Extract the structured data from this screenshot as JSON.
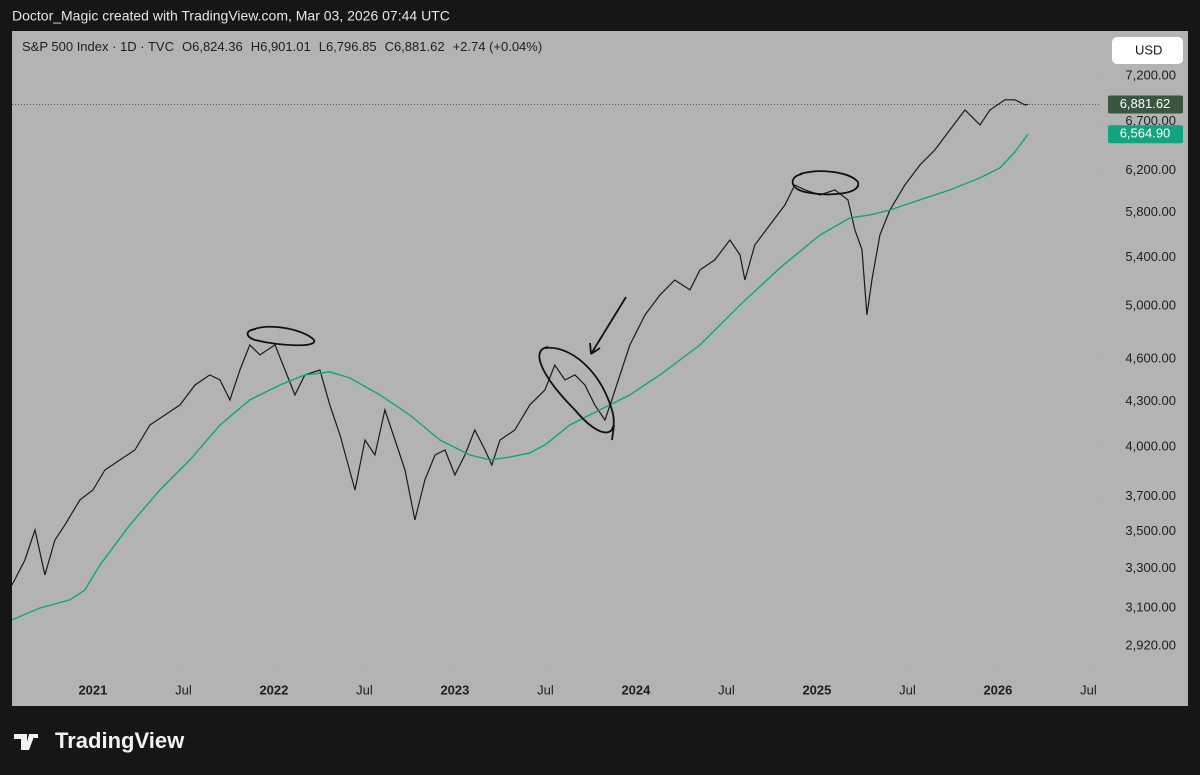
{
  "header": {
    "text": "Doctor_Magic created with TradingView.com, Mar 03, 2026 07:44 UTC"
  },
  "toolbar": {
    "currency": "USD"
  },
  "footer": {
    "logo": "TradingView"
  },
  "chart_data": {
    "type": "line",
    "legend": {
      "symbol": "S&P 500 Index · 1D · TVC",
      "ohlc": [
        {
          "key": "O",
          "value": 6824.36,
          "label": "6,824.36"
        },
        {
          "key": "H",
          "value": 6901.01,
          "label": "6,901.01"
        },
        {
          "key": "L",
          "value": 6796.85,
          "label": "6,796.85"
        },
        {
          "key": "C",
          "value": 6881.62,
          "label": "6,881.62"
        }
      ],
      "change": "+2.74 (+0.04%)"
    },
    "log_scale": true,
    "xlim": [
      2020.553,
      2026.564
    ],
    "xticks": [
      {
        "value": 2021,
        "label": "2021"
      },
      {
        "value": 2021.5,
        "label": "Jul"
      },
      {
        "value": 2022,
        "label": "2022"
      },
      {
        "value": 2022.5,
        "label": "Jul"
      },
      {
        "value": 2023,
        "label": "2023"
      },
      {
        "value": 2023.5,
        "label": "Jul"
      },
      {
        "value": 2024,
        "label": "2024"
      },
      {
        "value": 2024.5,
        "label": "Jul"
      },
      {
        "value": 2025,
        "label": "2025"
      },
      {
        "value": 2025.5,
        "label": "Jul"
      },
      {
        "value": 2026,
        "label": "2026"
      },
      {
        "value": 2026.5,
        "label": "Jul"
      }
    ],
    "ylim": [
      2820,
      7730
    ],
    "yticks": [
      {
        "value": 2920,
        "label": "2,920.00"
      },
      {
        "value": 3100,
        "label": "3,100.00"
      },
      {
        "value": 3300,
        "label": "3,300.00"
      },
      {
        "value": 3500,
        "label": "3,500.00"
      },
      {
        "value": 3700,
        "label": "3,700.00"
      },
      {
        "value": 4000,
        "label": "4,000.00"
      },
      {
        "value": 4300,
        "label": "4,300.00"
      },
      {
        "value": 4600,
        "label": "4,600.00"
      },
      {
        "value": 5000,
        "label": "5,000.00"
      },
      {
        "value": 5400,
        "label": "5,400.00"
      },
      {
        "value": 5800,
        "label": "5,800.00"
      },
      {
        "value": 6200,
        "label": "6,200.00"
      },
      {
        "value": 6700,
        "label": "6,700.00"
      },
      {
        "value": 7200,
        "label": "7,200.00"
      }
    ],
    "series": [
      {
        "color": "#1a1a1a",
        "tag_color": "#3b5640",
        "last_label": "6,881.62",
        "x": [
          2020.553,
          2020.624,
          2020.68,
          2020.735,
          2020.79,
          2020.845,
          2020.928,
          2021.0,
          2021.066,
          2021.149,
          2021.232,
          2021.315,
          2021.398,
          2021.481,
          2021.564,
          2021.646,
          2021.702,
          2021.757,
          2021.812,
          2021.867,
          2021.923,
          2022.006,
          2022.061,
          2022.116,
          2022.171,
          2022.254,
          2022.309,
          2022.365,
          2022.448,
          2022.503,
          2022.558,
          2022.613,
          2022.669,
          2022.724,
          2022.779,
          2022.834,
          2022.89,
          2022.945,
          2023.0,
          2023.055,
          2023.11,
          2023.166,
          2023.204,
          2023.249,
          2023.331,
          2023.414,
          2023.497,
          2023.552,
          2023.608,
          2023.663,
          2023.718,
          2023.773,
          2023.829,
          2023.867,
          2023.912,
          2023.967,
          2024.05,
          2024.133,
          2024.215,
          2024.298,
          2024.354,
          2024.436,
          2024.519,
          2024.575,
          2024.602,
          2024.657,
          2024.74,
          2024.823,
          2024.878,
          2024.934,
          2025.017,
          2025.099,
          2025.171,
          2025.21,
          2025.249,
          2025.276,
          2025.304,
          2025.348,
          2025.403,
          2025.486,
          2025.569,
          2025.652,
          2025.735,
          2025.818,
          2025.901,
          2025.956,
          2026.039,
          2026.094,
          2026.149,
          2026.166
        ],
        "values": [
          3216,
          3346,
          3509,
          3268,
          3453,
          3537,
          3680,
          3738,
          3858,
          3920,
          3982,
          4143,
          4209,
          4277,
          4414,
          4485,
          4449,
          4311,
          4520,
          4703,
          4629,
          4703,
          4520,
          4345,
          4485,
          4520,
          4277,
          4078,
          3738,
          4046,
          3951,
          4243,
          4046,
          3858,
          3565,
          3798,
          3951,
          3982,
          3828,
          3951,
          4110,
          3982,
          3889,
          4046,
          4110,
          4277,
          4379,
          4556,
          4449,
          4485,
          4414,
          4277,
          4176,
          4311,
          4485,
          4703,
          4932,
          5090,
          5212,
          5131,
          5296,
          5380,
          5553,
          5423,
          5212,
          5509,
          5687,
          5869,
          6058,
          6011,
          5963,
          6011,
          5917,
          5642,
          5467,
          4932,
          5212,
          5597,
          5823,
          6058,
          6253,
          6404,
          6610,
          6822,
          6662,
          6822,
          6932,
          6932,
          6877,
          6881.62
        ]
      },
      {
        "color": "#12a37f",
        "tag_color": "#12a37f",
        "last_label": "6,564.90",
        "x": [
          2020.553,
          2020.707,
          2020.873,
          2020.956,
          2021.039,
          2021.204,
          2021.37,
          2021.536,
          2021.702,
          2021.867,
          2022.033,
          2022.171,
          2022.309,
          2022.42,
          2022.586,
          2022.751,
          2022.917,
          2023.083,
          2023.193,
          2023.304,
          2023.414,
          2023.497,
          2023.635,
          2023.801,
          2023.967,
          2024.133,
          2024.354,
          2024.575,
          2024.796,
          2025.017,
          2025.182,
          2025.293,
          2025.403,
          2025.569,
          2025.735,
          2025.901,
          2026.011,
          2026.094,
          2026.166
        ],
        "values": [
          3043,
          3101,
          3141,
          3191,
          3320,
          3537,
          3738,
          3920,
          4143,
          4311,
          4414,
          4485,
          4506,
          4463,
          4345,
          4209,
          4046,
          3951,
          3920,
          3938,
          3964,
          4014,
          4143,
          4243,
          4345,
          4485,
          4703,
          5010,
          5313,
          5597,
          5750,
          5778,
          5823,
          5917,
          6011,
          6126,
          6224,
          6383,
          6564.9
        ]
      }
    ]
  }
}
